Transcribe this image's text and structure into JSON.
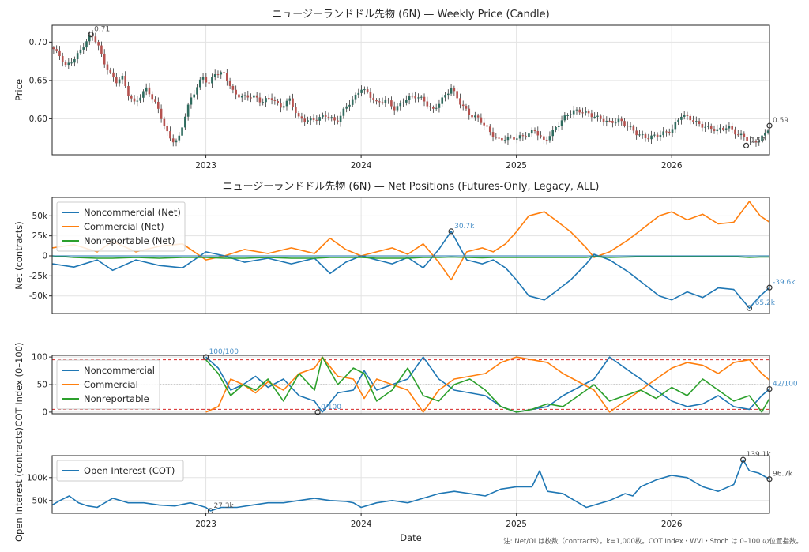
{
  "chart_data": [
    {
      "type": "candlestick",
      "title": "ニュージーランドドル先物 (6N) — Weekly Price (Candle)",
      "ylabel": "Price",
      "ylim": [
        0.553,
        0.722
      ],
      "yticks": [
        "0.60",
        "0.65",
        "0.70"
      ],
      "ytick_values": [
        0.6,
        0.65,
        0.7
      ],
      "xticks": [
        "2023",
        "2024",
        "2025",
        "2026"
      ],
      "xtick_values": [
        2023.0,
        2024.0,
        2025.0,
        2026.0
      ],
      "xlim": [
        2022.01,
        2026.63
      ],
      "close_path_x": [
        2022.01,
        2022.06,
        2022.1,
        2022.14,
        2022.18,
        2022.22,
        2022.26,
        2022.3,
        2022.34,
        2022.38,
        2022.42,
        2022.46,
        2022.5,
        2022.54,
        2022.58,
        2022.62,
        2022.66,
        2022.7,
        2022.74,
        2022.78,
        2022.82,
        2022.86,
        2022.9,
        2022.94,
        2022.98,
        2023.02,
        2023.06,
        2023.12,
        2023.18,
        2023.24,
        2023.3,
        2023.36,
        2023.42,
        2023.48,
        2023.54,
        2023.6,
        2023.66,
        2023.72,
        2023.78,
        2023.84,
        2023.9,
        2023.96,
        2024.0,
        2024.05,
        2024.1,
        2024.16,
        2024.22,
        2024.28,
        2024.34,
        2024.4,
        2024.46,
        2024.52,
        2024.58,
        2024.64,
        2024.7,
        2024.76,
        2024.82,
        2024.88,
        2024.94,
        2025.0,
        2025.06,
        2025.12,
        2025.18,
        2025.24,
        2025.3,
        2025.36,
        2025.42,
        2025.48,
        2025.54,
        2025.6,
        2025.66,
        2025.72,
        2025.78,
        2025.84,
        2025.9,
        2025.96,
        2026.0,
        2026.06,
        2026.12,
        2026.18,
        2026.24,
        2026.3,
        2026.36,
        2026.42,
        2026.48,
        2026.52,
        2026.56,
        2026.6,
        2026.63
      ],
      "close_path_y": [
        0.693,
        0.682,
        0.668,
        0.676,
        0.685,
        0.698,
        0.71,
        0.7,
        0.675,
        0.66,
        0.648,
        0.655,
        0.632,
        0.62,
        0.63,
        0.64,
        0.625,
        0.61,
        0.585,
        0.572,
        0.57,
        0.6,
        0.625,
        0.64,
        0.655,
        0.645,
        0.66,
        0.658,
        0.633,
        0.628,
        0.63,
        0.622,
        0.628,
        0.615,
        0.625,
        0.6,
        0.598,
        0.6,
        0.605,
        0.595,
        0.615,
        0.628,
        0.64,
        0.632,
        0.62,
        0.625,
        0.612,
        0.625,
        0.63,
        0.625,
        0.61,
        0.625,
        0.64,
        0.62,
        0.605,
        0.6,
        0.585,
        0.572,
        0.575,
        0.575,
        0.578,
        0.585,
        0.57,
        0.585,
        0.6,
        0.61,
        0.61,
        0.605,
        0.6,
        0.595,
        0.598,
        0.59,
        0.58,
        0.575,
        0.578,
        0.582,
        0.585,
        0.605,
        0.6,
        0.592,
        0.588,
        0.585,
        0.59,
        0.58,
        0.575,
        0.568,
        0.572,
        0.58,
        0.59
      ],
      "markers": [
        {
          "label": "0.71",
          "x": 2022.26,
          "y": 0.71
        },
        {
          "label": "0.57",
          "x": 2026.48,
          "y": 0.565
        },
        {
          "label": "0.59",
          "x": 2026.63,
          "y": 0.591
        }
      ]
    },
    {
      "type": "line",
      "title": "ニュージーランドドル先物 (6N) — Net Positions (Futures-Only, Legacy, ALL)",
      "ylabel": "Net (contracts)",
      "ylim": [
        -72000,
        73000
      ],
      "yticks": [
        "-50k",
        "-25k",
        "0",
        "25k",
        "50k"
      ],
      "ytick_values": [
        -50000,
        -25000,
        0,
        25000,
        50000
      ],
      "x": [
        2022.01,
        2022.15,
        2022.3,
        2022.4,
        2022.55,
        2022.7,
        2022.85,
        2023.0,
        2023.12,
        2023.25,
        2023.4,
        2023.55,
        2023.7,
        2023.8,
        2023.9,
        2024.0,
        2024.1,
        2024.2,
        2024.3,
        2024.4,
        2024.5,
        2024.58,
        2024.68,
        2024.78,
        2024.85,
        2024.93,
        2025.0,
        2025.08,
        2025.18,
        2025.25,
        2025.35,
        2025.45,
        2025.5,
        2025.6,
        2025.72,
        2025.82,
        2025.92,
        2026.0,
        2026.1,
        2026.2,
        2026.3,
        2026.4,
        2026.5,
        2026.57,
        2026.63
      ],
      "series": [
        {
          "name": "Noncommercial (Net)",
          "color": "#1f77b4",
          "values": [
            -10000,
            -14000,
            -5000,
            -18000,
            -5000,
            -12000,
            -15000,
            5000,
            0,
            -8000,
            -3000,
            -10000,
            -3000,
            -22000,
            -8000,
            0,
            -5000,
            -10000,
            -2000,
            -15000,
            8000,
            30700,
            -5000,
            -10000,
            -5000,
            -15000,
            -30000,
            -50000,
            -55000,
            -45000,
            -30000,
            -10000,
            2000,
            -5000,
            -20000,
            -35000,
            -50000,
            -55000,
            -45000,
            -52000,
            -40000,
            -42000,
            -65200,
            -50000,
            -39600
          ]
        },
        {
          "name": "Commercial (Net)",
          "color": "#ff7f0e",
          "values": [
            10000,
            14000,
            5000,
            18000,
            5000,
            12000,
            15000,
            -5000,
            0,
            8000,
            3000,
            10000,
            3000,
            22000,
            8000,
            0,
            5000,
            10000,
            2000,
            15000,
            -8000,
            -30000,
            5000,
            10000,
            5000,
            15000,
            30000,
            50000,
            55000,
            45000,
            30000,
            10000,
            -2000,
            5000,
            20000,
            35000,
            50000,
            55000,
            45000,
            52000,
            40000,
            42000,
            68000,
            50000,
            42000
          ]
        },
        {
          "name": "Nonreportable (Net)",
          "color": "#2ca02c",
          "values": [
            0,
            -2000,
            -3000,
            -3000,
            -2000,
            -3000,
            -2000,
            -2000,
            -3000,
            -3000,
            -2000,
            -3000,
            -3000,
            -2000,
            -2000,
            -2000,
            -3000,
            -3000,
            -3000,
            -2000,
            -2000,
            -1500,
            -2000,
            -2500,
            -2000,
            -2000,
            -2000,
            -2000,
            -2000,
            -2000,
            -2000,
            -2000,
            -1000,
            -2000,
            -1500,
            -1000,
            -1000,
            -1000,
            -1000,
            -1000,
            -500,
            -1000,
            -2000,
            -1500,
            -1500
          ]
        }
      ],
      "markers": [
        {
          "label": "30.7k",
          "x": 2024.58,
          "y": 30700
        },
        {
          "label": "-65.2k",
          "x": 2026.5,
          "y": -65200
        },
        {
          "label": "-39.6k",
          "x": 2026.63,
          "y": -39600
        }
      ]
    },
    {
      "type": "line",
      "ylabel": "COT Index (0–100)",
      "ylim": [
        -3,
        103
      ],
      "yticks": [
        "0",
        "50",
        "100"
      ],
      "ytick_values": [
        0,
        50,
        100
      ],
      "reference_lines": [
        {
          "y": 95,
          "style": "dashed",
          "color": "#d62728"
        },
        {
          "y": 50,
          "style": "dotted",
          "color": "#999999"
        },
        {
          "y": 5,
          "style": "dashed",
          "color": "#d62728"
        }
      ],
      "x": [
        2023.0,
        2023.08,
        2023.16,
        2023.24,
        2023.32,
        2023.4,
        2023.5,
        2023.6,
        2023.7,
        2023.75,
        2023.85,
        2023.95,
        2024.02,
        2024.1,
        2024.2,
        2024.3,
        2024.4,
        2024.5,
        2024.6,
        2024.7,
        2024.8,
        2024.9,
        2025.0,
        2025.1,
        2025.2,
        2025.3,
        2025.4,
        2025.5,
        2025.6,
        2025.7,
        2025.8,
        2025.9,
        2026.0,
        2026.1,
        2026.2,
        2026.3,
        2026.4,
        2026.5,
        2026.58,
        2026.63
      ],
      "series": [
        {
          "name": "Noncommercial",
          "color": "#1f77b4",
          "values": [
            100,
            80,
            40,
            50,
            65,
            45,
            60,
            30,
            20,
            0,
            35,
            40,
            75,
            40,
            50,
            60,
            100,
            60,
            40,
            35,
            30,
            10,
            0,
            5,
            10,
            30,
            45,
            60,
            100,
            80,
            60,
            40,
            20,
            10,
            15,
            30,
            10,
            5,
            30,
            42
          ]
        },
        {
          "name": "Commercial",
          "color": "#ff7f0e",
          "values": [
            0,
            10,
            60,
            50,
            35,
            55,
            40,
            70,
            80,
            100,
            65,
            60,
            25,
            60,
            50,
            40,
            0,
            40,
            60,
            65,
            70,
            90,
            100,
            95,
            90,
            70,
            55,
            40,
            0,
            20,
            40,
            60,
            80,
            90,
            85,
            70,
            90,
            95,
            70,
            58
          ]
        },
        {
          "name": "Nonreportable",
          "color": "#2ca02c",
          "values": [
            95,
            70,
            30,
            50,
            40,
            60,
            20,
            70,
            40,
            100,
            50,
            80,
            70,
            20,
            40,
            80,
            30,
            20,
            50,
            60,
            40,
            10,
            0,
            5,
            15,
            10,
            30,
            50,
            20,
            30,
            40,
            25,
            45,
            30,
            60,
            40,
            20,
            30,
            0,
            25
          ]
        }
      ],
      "markers": [
        {
          "label": "100/100",
          "x": 2023.0,
          "y": 100
        },
        {
          "label": "0/100",
          "x": 2023.72,
          "y": 0
        },
        {
          "label": "42/100",
          "x": 2026.63,
          "y": 42
        }
      ]
    },
    {
      "type": "line",
      "ylabel": "Open Interest (contracts)",
      "xlabel": "Date",
      "ylim": [
        22000,
        148000
      ],
      "yticks": [
        "50k",
        "100k"
      ],
      "ytick_values": [
        50000,
        100000
      ],
      "xticks": [
        "2023",
        "2024",
        "2025",
        "2026"
      ],
      "xtick_values": [
        2023.0,
        2024.0,
        2025.0,
        2026.0
      ],
      "x": [
        2022.01,
        2022.06,
        2022.12,
        2022.18,
        2022.24,
        2022.3,
        2022.4,
        2022.5,
        2022.6,
        2022.7,
        2022.8,
        2022.9,
        2023.0,
        2023.03,
        2023.1,
        2023.2,
        2023.3,
        2023.4,
        2023.5,
        2023.6,
        2023.7,
        2023.8,
        2023.9,
        2023.95,
        2024.0,
        2024.1,
        2024.2,
        2024.3,
        2024.4,
        2024.5,
        2024.6,
        2024.7,
        2024.8,
        2024.9,
        2025.0,
        2025.1,
        2025.15,
        2025.2,
        2025.3,
        2025.4,
        2025.45,
        2025.5,
        2025.6,
        2025.7,
        2025.75,
        2025.8,
        2025.9,
        2026.0,
        2026.1,
        2026.2,
        2026.3,
        2026.4,
        2026.46,
        2026.5,
        2026.56,
        2026.63
      ],
      "series": [
        {
          "name": "Open Interest (COT)",
          "color": "#1f77b4",
          "values": [
            40000,
            50000,
            60000,
            45000,
            38000,
            35000,
            55000,
            45000,
            45000,
            40000,
            38000,
            45000,
            35000,
            27300,
            35000,
            35000,
            40000,
            45000,
            45000,
            50000,
            55000,
            50000,
            48000,
            45000,
            35000,
            45000,
            50000,
            45000,
            55000,
            65000,
            70000,
            65000,
            60000,
            75000,
            80000,
            80000,
            115000,
            70000,
            65000,
            45000,
            35000,
            40000,
            50000,
            65000,
            60000,
            80000,
            95000,
            105000,
            100000,
            80000,
            70000,
            85000,
            139100,
            115000,
            110000,
            96700
          ]
        }
      ],
      "markers": [
        {
          "label": "27.3k",
          "x": 2023.03,
          "y": 27300
        },
        {
          "label": "139.1k",
          "x": 2026.46,
          "y": 139100
        },
        {
          "label": "96.7k",
          "x": 2026.63,
          "y": 96700
        }
      ]
    }
  ],
  "note": "注: Net/OI は枚数（contracts）。k=1,000枚。COT Index・WVI・Stoch は 0–100 の位置指数。",
  "up_color": "#2f6b5e",
  "down_color": "#b5524f"
}
